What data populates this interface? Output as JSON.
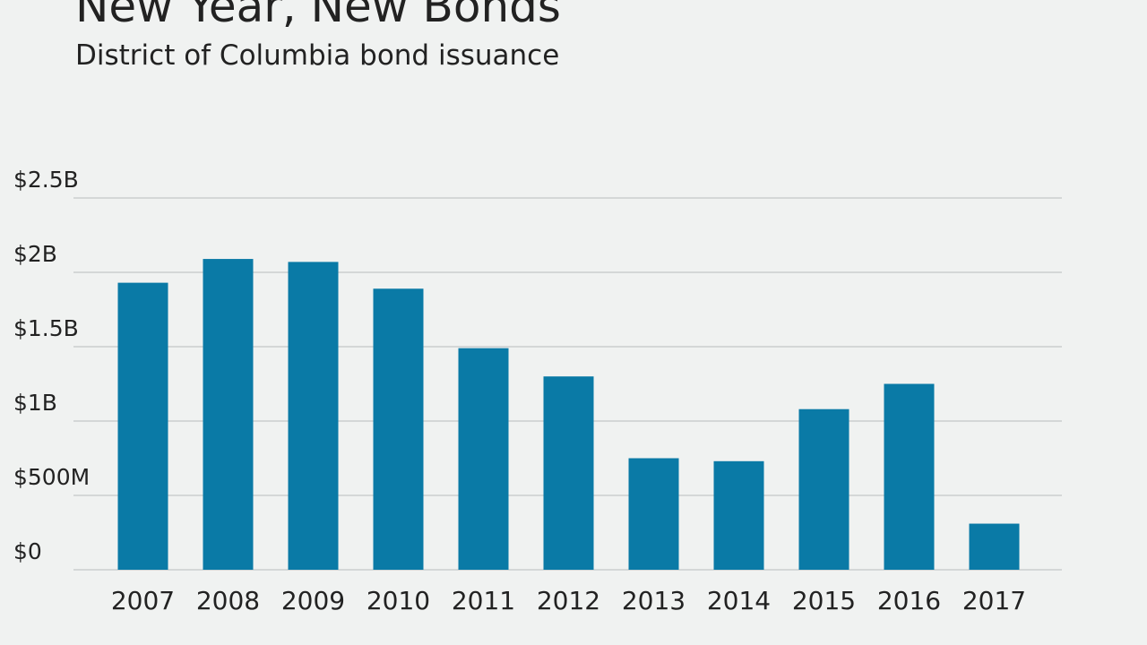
{
  "chart_data": {
    "type": "bar",
    "title": "New Year, New Bonds",
    "subtitle": "District of Columbia bond issuance",
    "categories": [
      "2007",
      "2008",
      "2009",
      "2010",
      "2011",
      "2012",
      "2013",
      "2014",
      "2015",
      "2016",
      "2017"
    ],
    "values": [
      1930000000,
      2090000000,
      2070000000,
      1890000000,
      1490000000,
      1300000000,
      750000000,
      730000000,
      1080000000,
      1250000000,
      310000000
    ],
    "color": "#0a7aa6",
    "ylim": [
      0,
      2500000000
    ],
    "yticks": [
      {
        "value": 0,
        "label": "$0"
      },
      {
        "value": 500000000,
        "label": "$500M"
      },
      {
        "value": 1000000000,
        "label": "$1B"
      },
      {
        "value": 1500000000,
        "label": "$1.5B"
      },
      {
        "value": 2000000000,
        "label": "$2B"
      },
      {
        "value": 2500000000,
        "label": "$2.5B"
      }
    ],
    "grid": true
  }
}
